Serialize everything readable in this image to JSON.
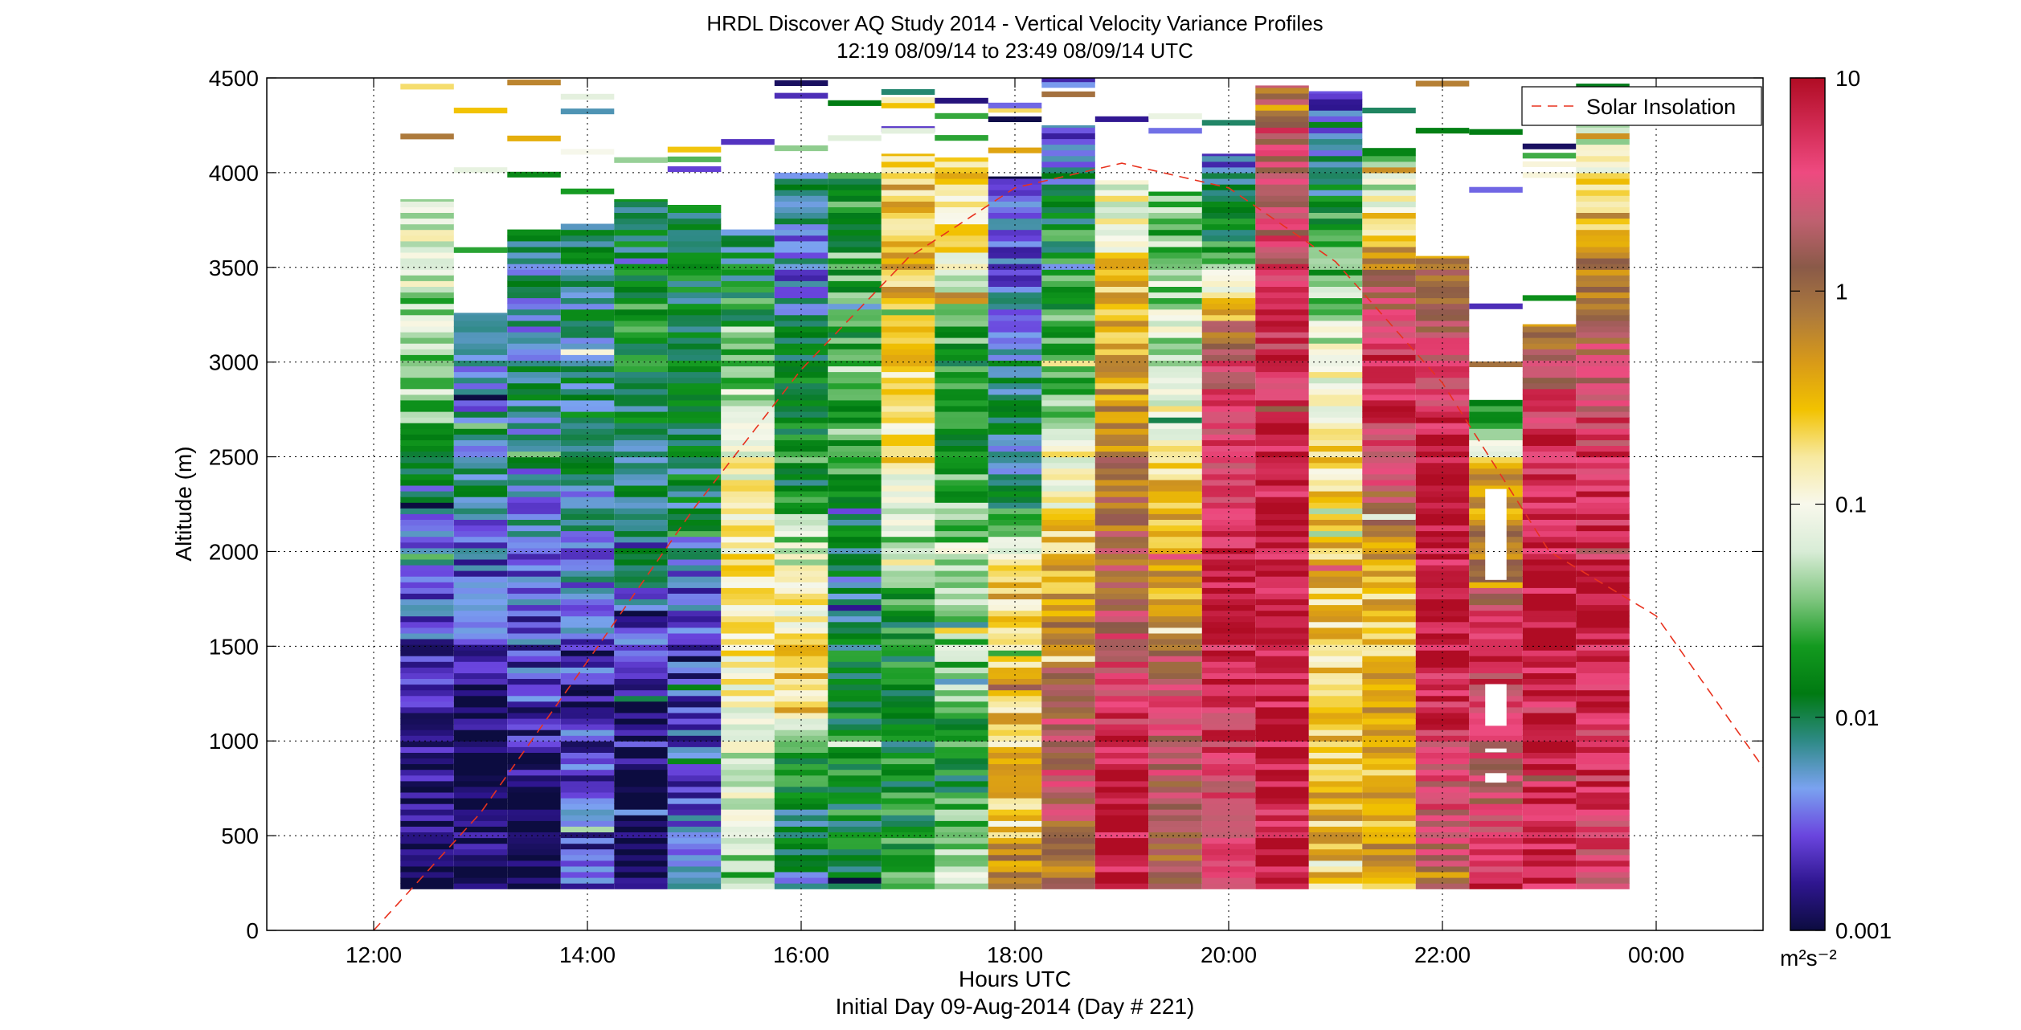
{
  "chart_data": {
    "type": "heatmap",
    "title": "HRDL Discover AQ Study 2014 - Vertical Velocity Variance Profiles",
    "subtitle": "12:19 08/09/14 to 23:49 08/09/14  UTC",
    "xlabel": "Hours UTC",
    "xlabel2": "Initial Day 09-Aug-2014 (Day # 221)",
    "ylabel": "Altitude (m)",
    "xlim": [
      11.0,
      25.0
    ],
    "ylim": [
      0,
      4500
    ],
    "x_ticks": [
      {
        "value": 12,
        "label": "12:00"
      },
      {
        "value": 14,
        "label": "14:00"
      },
      {
        "value": 16,
        "label": "16:00"
      },
      {
        "value": 18,
        "label": "18:00"
      },
      {
        "value": 20,
        "label": "20:00"
      },
      {
        "value": 22,
        "label": "22:00"
      },
      {
        "value": 24,
        "label": "00:00"
      }
    ],
    "y_ticks": [
      0,
      500,
      1000,
      1500,
      2000,
      2500,
      3000,
      3500,
      4000,
      4500
    ],
    "grid": true,
    "colorbar": {
      "scale": "log",
      "range": [
        0.001,
        10
      ],
      "ticks": [
        {
          "value": 0.001,
          "label": "0.001"
        },
        {
          "value": 0.01,
          "label": "0.01"
        },
        {
          "value": 0.1,
          "label": "0.1"
        },
        {
          "value": 1,
          "label": "1"
        },
        {
          "value": 10,
          "label": "10"
        }
      ],
      "unit": "m²s⁻²",
      "colors": [
        "#0c0c40",
        "#2f1690",
        "#6a45de",
        "#7aa2f0",
        "#2e8a86",
        "#007a12",
        "#139a1f",
        "#80c680",
        "#d8ecd6",
        "#f8f8ec",
        "#f7e9a0",
        "#f2c200",
        "#d89a18",
        "#ad7a3c",
        "#8a5a48",
        "#c06070",
        "#ee4a80",
        "#d12a52",
        "#b00c24"
      ]
    },
    "legend": {
      "position": "top-right",
      "entries": [
        "Solar Insolation"
      ]
    },
    "solar_insolation": {
      "style": "dashed",
      "color": "#e8321e",
      "x": [
        12.0,
        13.0,
        14.0,
        15.0,
        16.0,
        17.0,
        18.0,
        19.0,
        20.0,
        21.0,
        22.0,
        23.0,
        24.0,
        25.0
      ],
      "y": [
        0,
        620,
        1420,
        2230,
        2960,
        3550,
        3920,
        4050,
        3920,
        3530,
        2890,
        2000,
        1660,
        860
      ]
    },
    "profiles": [
      {
        "time": 12.5,
        "top": 3860,
        "log_variance": [
          -3.0,
          -2.9,
          -2.8,
          -2.4,
          -2.2,
          -1.4,
          -1.2,
          -1.1
        ]
      },
      {
        "time": 13.0,
        "top": 3260,
        "log_variance": [
          -3.0,
          -3.0,
          -3.0,
          -2.6,
          -2.5,
          -2.1,
          -2.3,
          -2.4
        ]
      },
      {
        "time": 13.5,
        "top": 3700,
        "log_variance": [
          -3.0,
          -2.9,
          -2.6,
          -2.5,
          -2.3,
          -2.1,
          -2.2,
          -2.0
        ]
      },
      {
        "time": 14.0,
        "top": 3730,
        "log_variance": [
          -2.6,
          -2.5,
          -2.7,
          -2.4,
          -2.2,
          -2.0,
          -2.1,
          -1.9
        ]
      },
      {
        "time": 14.5,
        "top": 3860,
        "log_variance": [
          -3.0,
          -3.0,
          -2.9,
          -2.3,
          -2.1,
          -1.9,
          -1.8,
          -2.0
        ]
      },
      {
        "time": 15.0,
        "top": 3830,
        "log_variance": [
          -2.4,
          -2.5,
          -2.6,
          -2.5,
          -2.0,
          -1.8,
          -1.9,
          -2.0
        ]
      },
      {
        "time": 15.5,
        "top": 3700,
        "log_variance": [
          -1.4,
          -1.2,
          -1.0,
          -0.8,
          -0.9,
          -1.1,
          -1.7,
          -2.1
        ]
      },
      {
        "time": 16.0,
        "top": 4000,
        "log_variance": [
          -2.2,
          -1.8,
          -0.6,
          -1.0,
          -1.7,
          -1.9,
          -2.4,
          -2.1
        ]
      },
      {
        "time": 16.5,
        "top": 4000,
        "log_variance": [
          -1.9,
          -1.8,
          -1.9,
          -2.1,
          -1.7,
          -1.5,
          -1.6,
          -1.8
        ]
      },
      {
        "time": 17.0,
        "top": 4100,
        "log_variance": [
          -1.7,
          -1.8,
          -1.9,
          -1.6,
          -0.8,
          -0.6,
          -0.5,
          -0.6
        ]
      },
      {
        "time": 17.5,
        "top": 4080,
        "log_variance": [
          -1.1,
          -1.8,
          -1.5,
          -1.2,
          -1.6,
          -1.8,
          -0.9,
          -0.7
        ]
      },
      {
        "time": 18.0,
        "top": 3980,
        "log_variance": [
          -0.3,
          -0.6,
          -0.6,
          -0.7,
          -2.2,
          -2.0,
          -2.4,
          -2.6
        ]
      },
      {
        "time": 18.5,
        "top": 4250,
        "log_variance": [
          -0.1,
          0.4,
          0.1,
          -0.5,
          -1.2,
          -1.6,
          -1.8,
          -2.5
        ]
      },
      {
        "time": 19.0,
        "top": 3960,
        "log_variance": [
          0.9,
          0.9,
          0.6,
          0.1,
          0.0,
          -0.4,
          -0.6,
          -1.2
        ]
      },
      {
        "time": 19.5,
        "top": 3900,
        "log_variance": [
          0.1,
          0.3,
          0.4,
          -0.4,
          -0.6,
          -1.1,
          -1.3,
          -1.6
        ]
      },
      {
        "time": 20.0,
        "top": 4100,
        "log_variance": [
          0.4,
          0.6,
          0.8,
          0.9,
          0.7,
          0.5,
          -1.6,
          -2.5
        ]
      },
      {
        "time": 20.5,
        "top": 4460,
        "log_variance": [
          0.7,
          0.9,
          0.9,
          0.9,
          0.8,
          0.6,
          0.4,
          0.1
        ]
      },
      {
        "time": 21.0,
        "top": 4430,
        "log_variance": [
          -0.6,
          -0.5,
          -0.7,
          -0.5,
          -0.8,
          -1.3,
          -1.8,
          -2.7
        ]
      },
      {
        "time": 21.5,
        "top": 4130,
        "log_variance": [
          -0.4,
          -0.4,
          -0.5,
          -0.6,
          0.6,
          0.8,
          -0.3,
          -1.7
        ]
      },
      {
        "time": 22.0,
        "top": 3560,
        "log_variance": [
          0.1,
          0.5,
          0.7,
          0.9,
          0.9,
          0.8,
          0.4,
          -0.2
        ]
      },
      {
        "time": 22.5,
        "top": 2800,
        "log_variance": [
          0.8,
          0.3,
          0.5,
          0.7,
          0.0,
          -0.4,
          -1.9
        ]
      },
      {
        "time": 23.0,
        "top": 3200,
        "log_variance": [
          0.9,
          0.9,
          0.9,
          0.9,
          0.8,
          0.7,
          -0.2
        ]
      },
      {
        "time": 23.5,
        "top": 4470,
        "log_variance": [
          0.6,
          0.7,
          0.8,
          0.8,
          0.6,
          0.1,
          -0.6,
          -1.8
        ]
      }
    ],
    "gaps": [
      {
        "time": 22.5,
        "from": 1850,
        "to": 2330
      },
      {
        "time": 22.5,
        "from": 1080,
        "to": 1300
      },
      {
        "time": 22.5,
        "from": 940,
        "to": 960
      },
      {
        "time": 22.5,
        "from": 780,
        "to": 830
      }
    ]
  }
}
